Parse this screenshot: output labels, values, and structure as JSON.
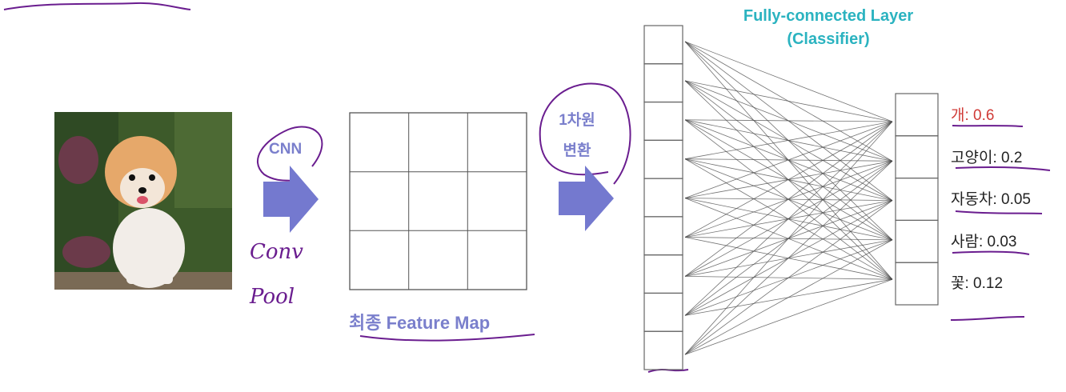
{
  "title": {
    "line1": "Fully-connected Layer",
    "line2": "(Classifier)"
  },
  "input_image": {
    "subject": "pomeranian dog photo"
  },
  "arrow1": {
    "label": "CNN",
    "annotation": [
      "Conv",
      "Pool"
    ]
  },
  "feature_map": {
    "label": "최종 Feature Map",
    "rows": 3,
    "cols": 3
  },
  "arrow2": {
    "label_line1": "1차원",
    "label_line2": "변환"
  },
  "flatten_nodes": 9,
  "outputs": [
    {
      "label": "개: 0.6",
      "highlight": true
    },
    {
      "label": "고양이: 0.2",
      "highlight": false
    },
    {
      "label": "자동차: 0.05",
      "highlight": false
    },
    {
      "label": "사람: 0.03",
      "highlight": false
    },
    {
      "label": "꽃: 0.12",
      "highlight": false
    }
  ],
  "colors": {
    "arrow": "#7479cf",
    "title": "#2bb3c0",
    "highlight": "#d03a36",
    "ink": "#6a1d8f"
  }
}
